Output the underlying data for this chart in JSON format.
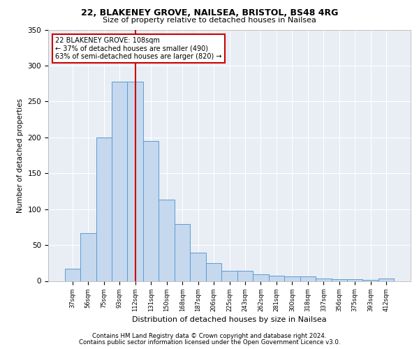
{
  "title1": "22, BLAKENEY GROVE, NAILSEA, BRISTOL, BS48 4RG",
  "title2": "Size of property relative to detached houses in Nailsea",
  "xlabel": "Distribution of detached houses by size in Nailsea",
  "ylabel": "Number of detached properties",
  "bar_labels": [
    "37sqm",
    "56sqm",
    "75sqm",
    "93sqm",
    "112sqm",
    "131sqm",
    "150sqm",
    "168sqm",
    "187sqm",
    "206sqm",
    "225sqm",
    "243sqm",
    "262sqm",
    "281sqm",
    "300sqm",
    "318sqm",
    "337sqm",
    "356sqm",
    "375sqm",
    "393sqm",
    "412sqm"
  ],
  "bar_values": [
    17,
    67,
    200,
    278,
    278,
    195,
    113,
    79,
    39,
    25,
    14,
    14,
    9,
    7,
    6,
    6,
    3,
    2,
    2,
    1,
    3
  ],
  "bar_color": "#c5d8ed",
  "bar_edge_color": "#5b9bd5",
  "bg_color": "#e8eef4",
  "grid_color": "#ffffff",
  "vline_x": 4,
  "vline_color": "#cc0000",
  "annotation_line1": "22 BLAKENEY GROVE: 108sqm",
  "annotation_line2": "← 37% of detached houses are smaller (490)",
  "annotation_line3": "63% of semi-detached houses are larger (820) →",
  "annotation_box_color": "#ffffff",
  "annotation_box_edge": "#cc0000",
  "footer1": "Contains HM Land Registry data © Crown copyright and database right 2024.",
  "footer2": "Contains public sector information licensed under the Open Government Licence v3.0.",
  "ylim": [
    0,
    350
  ],
  "yticks": [
    0,
    50,
    100,
    150,
    200,
    250,
    300,
    350
  ]
}
